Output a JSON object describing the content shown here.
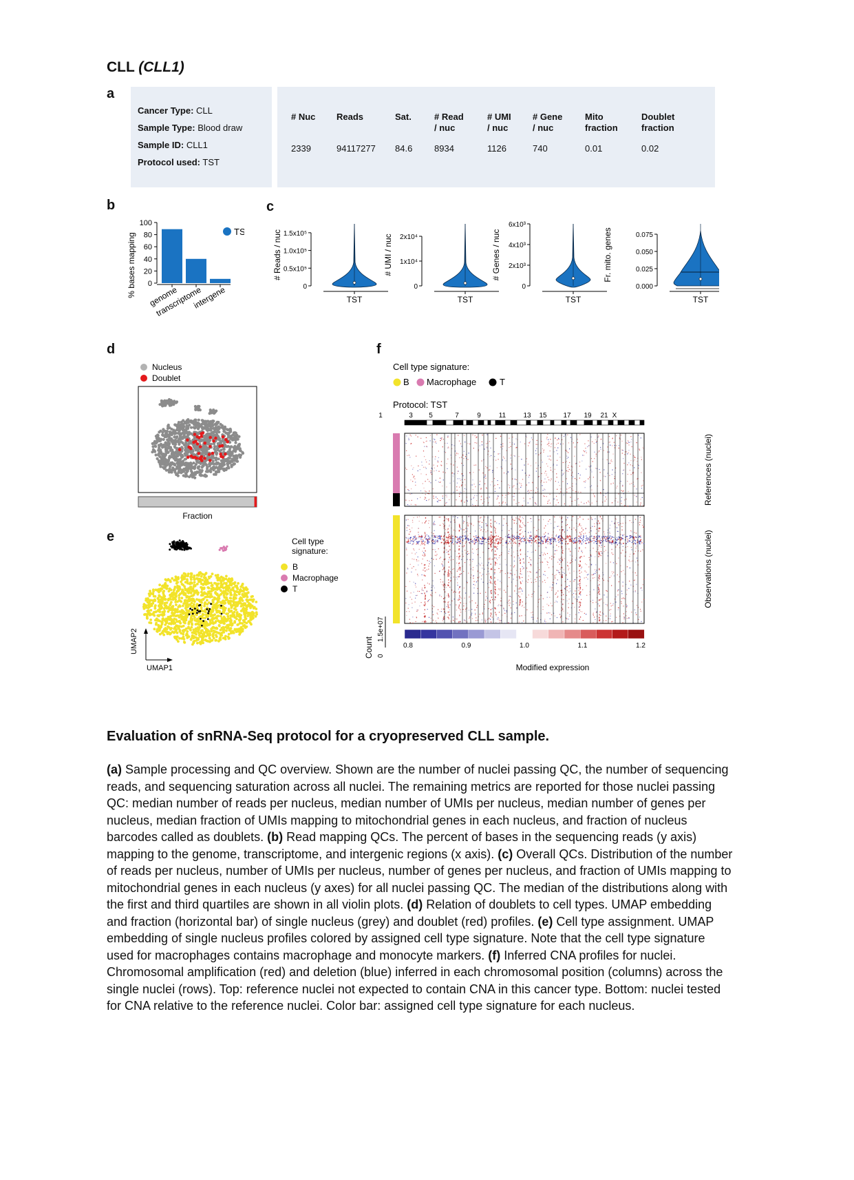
{
  "title": {
    "main": "CLL",
    "sub": "(CLL1)"
  },
  "panel_labels": {
    "a": "a",
    "b": "b",
    "c": "c",
    "d": "d",
    "e": "e",
    "f": "f"
  },
  "sample_info": [
    {
      "key": "Cancer Type:",
      "value": "CLL"
    },
    {
      "key": "Sample Type:",
      "value": "Blood draw"
    },
    {
      "key": "Sample ID:",
      "value": "CLL1"
    },
    {
      "key": "Protocol used:",
      "value": "TST"
    }
  ],
  "metrics": {
    "headers": [
      "# Nuc",
      "Reads",
      "Sat.",
      "# Read\n/ nuc",
      "# UMI\n/ nuc",
      "# Gene\n/ nuc",
      "Mito\nfraction",
      "Doublet\nfraction"
    ],
    "values": [
      "2339",
      "94117277",
      "84.6",
      "8934",
      "1126",
      "740",
      "0.01",
      "0.02"
    ]
  },
  "chart_data": [
    {
      "type": "bar",
      "id": "b",
      "categories": [
        "genome",
        "transcriptome",
        "intergene"
      ],
      "values": [
        89,
        40,
        7
      ],
      "ylabel": "% bases mapping",
      "ylim": [
        0,
        100
      ],
      "yticks": [
        "0",
        "20",
        "40",
        "60",
        "80",
        "100"
      ],
      "legend": "TST",
      "color": "#1a73c2"
    },
    {
      "type": "violin",
      "id": "c",
      "xlabel": "TST",
      "color": "#1a73c2",
      "panels": [
        {
          "ylabel": "# Reads / nuc",
          "ticks": [
            "0",
            "0.5x10⁵",
            "1.0x10⁵",
            "1.5x10⁵"
          ],
          "tick_values": [
            0,
            50000,
            100000,
            150000
          ],
          "ymax": 175000,
          "median": 8934
        },
        {
          "ylabel": "# UMI / nuc",
          "ticks": [
            "0",
            "1x10⁴",
            "2x10⁴"
          ],
          "tick_values": [
            0,
            10000,
            20000
          ],
          "ymax": 25000,
          "median": 1126
        },
        {
          "ylabel": "# Genes / nuc",
          "ticks": [
            "0",
            "2x10³",
            "4x10³",
            "6x10³"
          ],
          "tick_values": [
            0,
            2000,
            4000,
            6000
          ],
          "ymax": 6000,
          "median": 740
        },
        {
          "ylabel": "Fr. mito. genes",
          "ticks": [
            "0.000",
            "0.025",
            "0.050",
            "0.075"
          ],
          "tick_values": [
            0,
            0.025,
            0.05,
            0.075
          ],
          "ymax": 0.09,
          "median": 0.01
        }
      ]
    },
    {
      "type": "scatter",
      "id": "d",
      "legend": [
        {
          "label": "Nucleus",
          "color": "#b3b3b3"
        },
        {
          "label": "Doublet",
          "color": "#e41a1c"
        }
      ],
      "fraction_label": "Fraction",
      "doublet_fraction": 0.02
    },
    {
      "type": "scatter",
      "id": "e",
      "legend_title": "Cell type\nsignature:",
      "legend": [
        {
          "label": "B",
          "color": "#f2e32a"
        },
        {
          "label": "Macrophage",
          "color": "#d97bb0"
        },
        {
          "label": "T",
          "color": "#000000"
        }
      ],
      "xlabel": "UMAP1",
      "ylabel": "UMAP2"
    },
    {
      "type": "heatmap",
      "id": "f",
      "signature_title": "Cell type signature:",
      "legend": [
        {
          "label": "B",
          "color": "#f2e32a"
        },
        {
          "label": "Macrophage",
          "color": "#d97bb0"
        },
        {
          "label": "T",
          "color": "#000000"
        }
      ],
      "protocol": "Protocol: TST",
      "chromosome_labels": [
        "1",
        "3",
        "5",
        "7",
        "9",
        "11",
        "13",
        "15",
        "17",
        "19",
        "21",
        "X"
      ],
      "references_label": "References (nuclei)",
      "observations_label": "Observations (nuclei)",
      "count_label": "Count",
      "count_ticks": [
        "0",
        "1.5e+07"
      ],
      "colorbar_ticks": [
        "0.8",
        "0.9",
        "1.0",
        "1.1",
        "1.2"
      ],
      "colorbar_label": "Modified expression",
      "colorbar_colors": [
        "#2a2a8f",
        "#35359f",
        "#5252b0",
        "#7272c0",
        "#9a9ad4",
        "#c4c4e6",
        "#e6e6f4",
        "#ffffff",
        "#f7dada",
        "#f0b5b5",
        "#e58a8a",
        "#d95c5c",
        "#cc3333",
        "#b31a1a",
        "#991111"
      ]
    }
  ],
  "caption": {
    "title": "Evaluation of snRNA-Seq protocol for a cryopreserved CLL sample.",
    "parts": [
      {
        "b": "(a)",
        "t": " Sample processing and QC overview. Shown are the number of nuclei passing QC, the number of sequencing reads, and sequencing saturation across all nuclei. The remaining metrics are reported for those nuclei passing QC: median number of reads per nucleus, median number of UMIs per nucleus, median number of genes per nucleus, median fraction of UMIs mapping to mitochondrial genes in each nucleus, and fraction of nucleus barcodes called as doublets. "
      },
      {
        "b": "(b)",
        "t": " Read mapping QCs. The percent of bases in the sequencing reads (y axis) mapping to the genome, transcriptome, and intergenic regions (x axis). "
      },
      {
        "b": "(c)",
        "t": " Overall QCs. Distribution of the number of reads per nucleus, number of UMIs per nucleus, number of genes per nucleus, and fraction of UMIs mapping to mitochondrial genes in each nucleus (y axes) for all nuclei passing QC. The median of the distributions along with the first and third quartiles are shown in all violin plots. "
      },
      {
        "b": "(d)",
        "t": " Relation of doublets to cell types. UMAP embedding and fraction (horizontal bar) of single nucleus (grey) and doublet (red) profiles. "
      },
      {
        "b": "(e)",
        "t": " Cell type assignment. UMAP embedding of single nucleus profiles colored by assigned cell type signature. Note that the cell type signature used for macrophages contains macrophage and monocyte markers. "
      },
      {
        "b": "(f)",
        "t": " Inferred CNA profiles for nuclei. Chromosomal amplification (red) and deletion (blue) inferred in each chromosomal position (columns) across the single nuclei (rows). Top: reference nuclei not expected to contain CNA in this cancer type. Bottom: nuclei tested for CNA relative to the reference nuclei. Color bar: assigned cell type signature for each nucleus."
      }
    ]
  }
}
